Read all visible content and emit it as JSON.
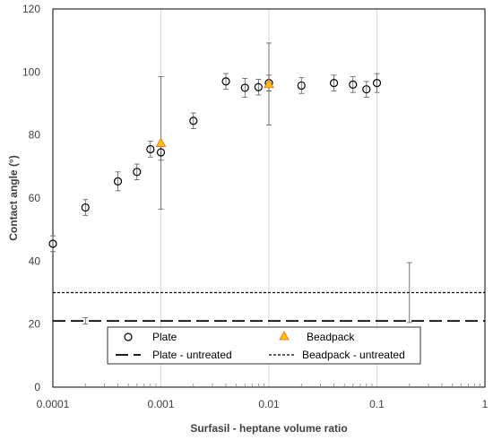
{
  "chart_data": {
    "type": "scatter",
    "title": "",
    "xlabel": "Surfasil - heptane volume ratio",
    "ylabel": "Contact angle (°)",
    "x_scale": "log",
    "xlim": [
      0.0001,
      1
    ],
    "ylim": [
      0,
      120
    ],
    "x_ticks": [
      0.0001,
      0.001,
      0.01,
      0.1,
      1
    ],
    "x_tick_labels": [
      "0.0001",
      "0.001",
      "0.01",
      "0.1",
      "1"
    ],
    "y_ticks": [
      0,
      20,
      40,
      60,
      80,
      100,
      120
    ],
    "y_tick_labels": [
      "0",
      "20",
      "40",
      "60",
      "80",
      "100",
      "120"
    ],
    "grid": {
      "vertical": true,
      "horizontal": false
    },
    "legend_position": "bottom-center",
    "series": [
      {
        "name": "Plate",
        "marker": "open-circle",
        "color": "#000000",
        "points": [
          {
            "x": 0.0001,
            "y": 45.5,
            "err": 2.5
          },
          {
            "x": 0.0002,
            "y": 57,
            "err": 2.5
          },
          {
            "x": 0.0004,
            "y": 65.3,
            "err": 3
          },
          {
            "x": 0.0006,
            "y": 68.3,
            "err": 2.5
          },
          {
            "x": 0.0008,
            "y": 75.5,
            "err": 2.5
          },
          {
            "x": 0.001,
            "y": 74.5,
            "err": 2.5
          },
          {
            "x": 0.002,
            "y": 84.5,
            "err": 2.5
          },
          {
            "x": 0.004,
            "y": 97,
            "err": 2.5
          },
          {
            "x": 0.006,
            "y": 95,
            "err": 3
          },
          {
            "x": 0.008,
            "y": 95.2,
            "err": 2.5
          },
          {
            "x": 0.01,
            "y": 96.5,
            "err": 2.5
          },
          {
            "x": 0.02,
            "y": 95.7,
            "err": 2.5
          },
          {
            "x": 0.04,
            "y": 96.5,
            "err": 2.5
          },
          {
            "x": 0.06,
            "y": 96,
            "err": 2.5
          },
          {
            "x": 0.08,
            "y": 94.5,
            "err": 2.5
          },
          {
            "x": 0.1,
            "y": 96.5,
            "err": 3
          }
        ]
      },
      {
        "name": "Beadpack",
        "marker": "filled-triangle",
        "color": "#FFC000",
        "edge_color": "#ED7D31",
        "points": [
          {
            "x": 0.001,
            "y": 77.5,
            "err_low": 21,
            "err_high": 21
          },
          {
            "x": 0.01,
            "y": 96.2,
            "err_low": 13,
            "err_high": 13
          }
        ]
      },
      {
        "name": "Plate - untreated",
        "line": "long-dash",
        "color": "#000000",
        "y": 21,
        "error_bar": {
          "x": 0.0002,
          "low": 20,
          "high": 22
        }
      },
      {
        "name": "Beadpack - untreated",
        "line": "short-dash",
        "color": "#000000",
        "y": 30,
        "error_bar": {
          "x": 0.2,
          "low": 20.5,
          "high": 39.5
        }
      }
    ]
  }
}
